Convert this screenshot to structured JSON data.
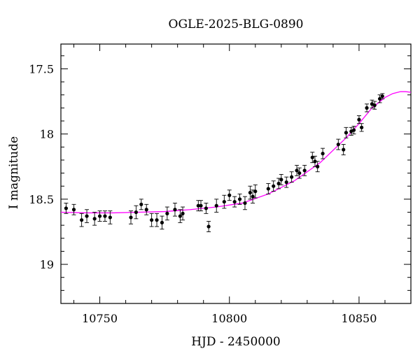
{
  "chart_data": {
    "type": "scatter",
    "title": "OGLE-2025-BLG-0890",
    "xlabel": "HJD - 2450000",
    "ylabel": "I magnitude",
    "xlim": [
      10735,
      10870
    ],
    "ylim": [
      19.3,
      17.31
    ],
    "y_inverted": true,
    "xticks": [
      10750,
      10800,
      10850
    ],
    "yticks": [
      17.5,
      18,
      18.5,
      19
    ],
    "ytick_labels": [
      "17.5",
      "18",
      "18.5",
      "19"
    ],
    "grid": false,
    "legend": "none",
    "colors": {
      "data": "#000000",
      "model": "#ff00ff",
      "axes": "#000000"
    },
    "series": [
      {
        "points": [
          [
            10737.0,
            18.57,
            0.04
          ],
          [
            10740.0,
            18.58,
            0.04
          ],
          [
            10743.0,
            18.66,
            0.05
          ],
          [
            10745.0,
            18.63,
            0.05
          ],
          [
            10748.0,
            18.65,
            0.05
          ],
          [
            10750.0,
            18.63,
            0.04
          ],
          [
            10752.0,
            18.63,
            0.04
          ],
          [
            10754.0,
            18.64,
            0.05
          ],
          [
            10762.0,
            18.64,
            0.05
          ],
          [
            10764.0,
            18.6,
            0.05
          ],
          [
            10766.0,
            18.54,
            0.04
          ],
          [
            10768.0,
            18.58,
            0.04
          ],
          [
            10770.0,
            18.66,
            0.05
          ],
          [
            10772.0,
            18.66,
            0.05
          ],
          [
            10774.0,
            18.68,
            0.05
          ],
          [
            10776.0,
            18.61,
            0.05
          ],
          [
            10779.0,
            18.58,
            0.05
          ],
          [
            10781.0,
            18.63,
            0.05
          ],
          [
            10782.0,
            18.61,
            0.05
          ],
          [
            10788.0,
            18.55,
            0.04
          ],
          [
            10789.0,
            18.55,
            0.04
          ],
          [
            10791.0,
            18.57,
            0.04
          ],
          [
            10792.0,
            18.71,
            0.04
          ],
          [
            10795.0,
            18.55,
            0.05
          ],
          [
            10798.0,
            18.52,
            0.05
          ],
          [
            10800.0,
            18.47,
            0.04
          ],
          [
            10802.0,
            18.52,
            0.04
          ],
          [
            10804.0,
            18.5,
            0.04
          ],
          [
            10806.0,
            18.53,
            0.05
          ],
          [
            10808.0,
            18.45,
            0.05
          ],
          [
            10809.0,
            18.48,
            0.05
          ],
          [
            10810.0,
            18.44,
            0.05
          ],
          [
            10815.0,
            18.42,
            0.04
          ],
          [
            10817.0,
            18.4,
            0.04
          ],
          [
            10819.0,
            18.38,
            0.04
          ],
          [
            10820.0,
            18.35,
            0.04
          ],
          [
            10822.0,
            18.37,
            0.04
          ],
          [
            10824.0,
            18.33,
            0.04
          ],
          [
            10826.0,
            18.28,
            0.04
          ],
          [
            10827.0,
            18.3,
            0.04
          ],
          [
            10829.0,
            18.28,
            0.04
          ],
          [
            10832.0,
            18.18,
            0.04
          ],
          [
            10833.0,
            18.21,
            0.04
          ],
          [
            10834.0,
            18.25,
            0.04
          ],
          [
            10836.0,
            18.15,
            0.04
          ],
          [
            10842.0,
            18.08,
            0.04
          ],
          [
            10844.0,
            18.12,
            0.04
          ],
          [
            10845.0,
            17.99,
            0.04
          ],
          [
            10847.0,
            17.98,
            0.03
          ],
          [
            10848.0,
            17.97,
            0.03
          ],
          [
            10850.0,
            17.89,
            0.03
          ],
          [
            10851.0,
            17.95,
            0.03
          ],
          [
            10853.0,
            17.8,
            0.03
          ],
          [
            10855.0,
            17.77,
            0.03
          ],
          [
            10856.0,
            17.78,
            0.03
          ],
          [
            10858.0,
            17.73,
            0.03
          ],
          [
            10859.0,
            17.71,
            0.02
          ]
        ]
      },
      {
        "model": [
          [
            10735,
            18.6
          ],
          [
            10745,
            18.605
          ],
          [
            10755,
            18.605
          ],
          [
            10765,
            18.6
          ],
          [
            10775,
            18.595
          ],
          [
            10785,
            18.58
          ],
          [
            10795,
            18.56
          ],
          [
            10805,
            18.53
          ],
          [
            10815,
            18.46
          ],
          [
            10825,
            18.36
          ],
          [
            10835,
            18.22
          ],
          [
            10845,
            18.03
          ],
          [
            10850,
            17.92
          ],
          [
            10855,
            17.8
          ],
          [
            10860,
            17.72
          ],
          [
            10863,
            17.69
          ],
          [
            10866,
            17.675
          ],
          [
            10868,
            17.675
          ],
          [
            10870,
            17.68
          ]
        ]
      }
    ]
  }
}
